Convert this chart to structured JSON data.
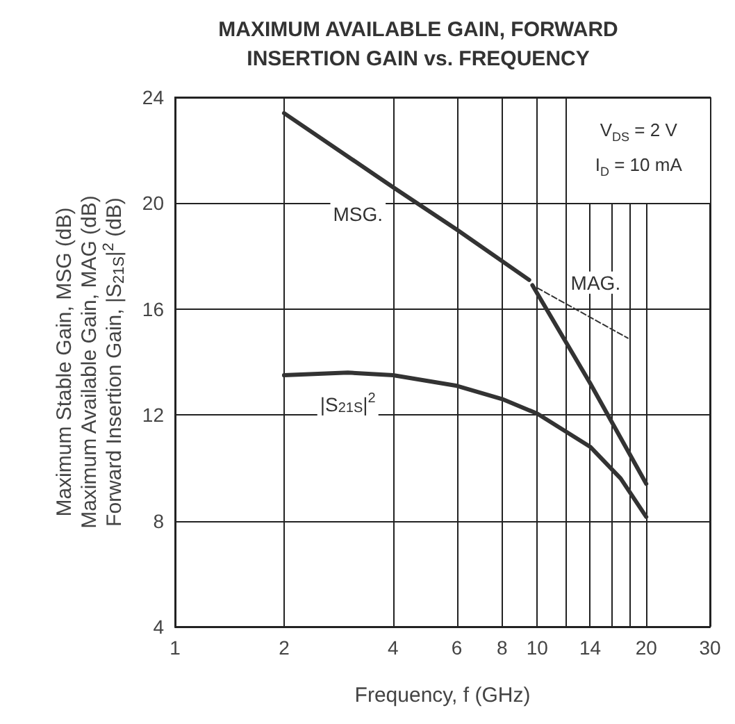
{
  "chart_data": {
    "type": "line",
    "title": "MAXIMUM AVAILABLE GAIN, FORWARD\nINSERTION GAIN vs. FREQUENCY",
    "xlabel": "Frequency, f (GHz)",
    "ylabel": "Maximum Stable Gain, MSG (dB)\nMaximum Available Gain, MAG (dB)\nForward Insertion Gain, |S$_{21S}$|$^{2}$ (dB)",
    "annotations": [
      "V$_{DS}$ = 2 V",
      "I$_{D}$ = 10 mA"
    ],
    "log": "x",
    "xlim": [
      1,
      30
    ],
    "ylim": [
      4,
      24
    ],
    "xticks": [
      1,
      2,
      4,
      6,
      8,
      10,
      {
        "value": 12,
        "label": null
      },
      14,
      {
        "value": 16,
        "label": null
      },
      {
        "value": 18,
        "label": null
      },
      20,
      30
    ],
    "yticks": [
      4,
      8,
      12,
      16,
      20,
      24
    ],
    "grid": true,
    "legend": false,
    "marker": "none",
    "series": [
      {
        "name": "MSG.",
        "color": "#333333",
        "x": [
          2,
          4,
          6,
          9.5
        ],
        "values": [
          23.4,
          20.6,
          19.0,
          17.1
        ]
      },
      {
        "name": "MAG.",
        "color": "#333333",
        "x": [
          9.7,
          14,
          20
        ],
        "values": [
          16.9,
          13.2,
          9.4
        ]
      },
      {
        "color": "#333333",
        "line_style": "dashed",
        "x": [
          10,
          17.8
        ],
        "values": [
          16.8,
          14.9
        ]
      },
      {
        "name": "|S$_{21S}$|$^{2}$",
        "color": "#333333",
        "x": [
          2,
          3,
          4,
          6,
          8,
          10,
          14,
          17,
          20
        ],
        "values": [
          13.5,
          13.6,
          13.5,
          13.1,
          12.6,
          12.05,
          10.8,
          9.6,
          8.15
        ]
      }
    ]
  }
}
